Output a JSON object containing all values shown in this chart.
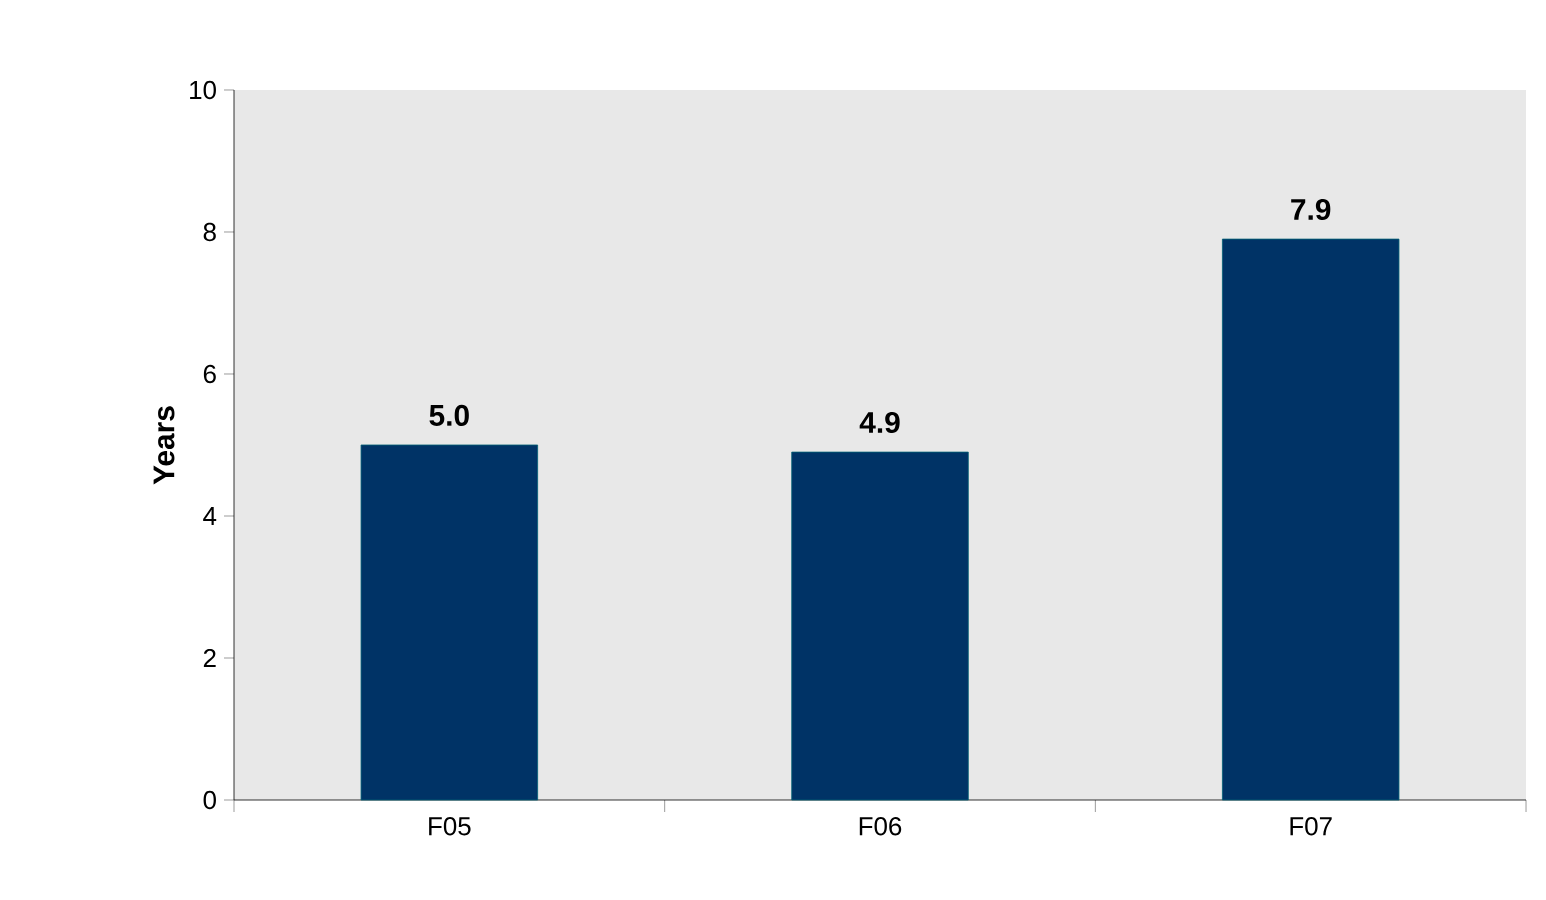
{
  "chart_data": {
    "type": "bar",
    "ylabel": "Years",
    "categories": [
      "F05",
      "F06",
      "F07"
    ],
    "values": [
      5.0,
      4.9,
      7.9
    ],
    "value_labels": [
      "5.0",
      "4.9",
      "7.9"
    ],
    "color": "#003366",
    "ylim": [
      0,
      10
    ],
    "yticks": [
      0,
      2,
      4,
      6,
      8,
      10
    ],
    "grid": false
  }
}
